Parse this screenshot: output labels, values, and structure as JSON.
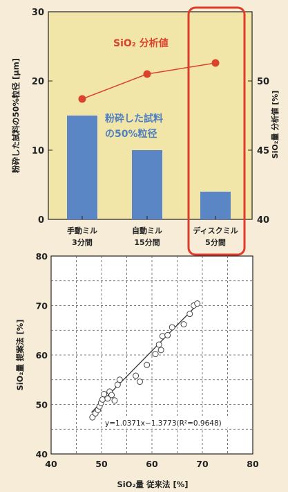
{
  "chart_data": [
    {
      "type": "bar",
      "categories": [
        {
          "line1": "手動ミル",
          "line2": "3分間"
        },
        {
          "line1": "自動ミル",
          "line2": "15分間"
        },
        {
          "line1": "ディスクミル",
          "line2": "5分間"
        }
      ],
      "bar_series": {
        "name_line1": "粉砕した試料",
        "name_line2": "の50%粒径",
        "values": [
          15,
          10,
          4
        ],
        "color": "#5a86c6"
      },
      "line_series": {
        "name": "SiO₂ 分析値",
        "values": [
          48.7,
          50.5,
          51.3
        ],
        "color": "#d9422b"
      },
      "ylabel_left": "粉砕した試料の50%粒径 [μm]",
      "ylabel_right": "SiO₂量 分析値 [%]",
      "ylim_left": [
        0,
        30
      ],
      "yticks_left": [
        0,
        10,
        20,
        30
      ],
      "ylim_right": [
        40,
        55
      ],
      "yticks_right": [
        40,
        45,
        50
      ],
      "highlight_category": "ディスクミル",
      "colors": {
        "plot_bg": "#f1e6a8",
        "highlight": "#e03b2a"
      }
    },
    {
      "type": "scatter",
      "xlabel": "SiO₂量 従来法 [%]",
      "ylabel": "SiO₂量 提案法 [%]",
      "xlim": [
        40,
        80
      ],
      "ylim": [
        40,
        80
      ],
      "xticks": [
        40,
        50,
        60,
        70,
        80
      ],
      "yticks": [
        40,
        50,
        60,
        70,
        80
      ],
      "equation": "y=1.0371x−1.3773(R²=0.9648)",
      "fit": {
        "slope": 1.0371,
        "intercept": -1.3773,
        "x_range": [
          48,
          69.5
        ]
      },
      "points": [
        {
          "x": 48.2,
          "y": 47.4
        },
        {
          "x": 48.8,
          "y": 48.2
        },
        {
          "x": 49.3,
          "y": 48.9
        },
        {
          "x": 49.6,
          "y": 49.6
        },
        {
          "x": 49.9,
          "y": 50.3
        },
        {
          "x": 50.2,
          "y": 51.0
        },
        {
          "x": 50.5,
          "y": 52.1
        },
        {
          "x": 51.2,
          "y": 51.2
        },
        {
          "x": 51.6,
          "y": 52.6
        },
        {
          "x": 52.0,
          "y": 51.9
        },
        {
          "x": 52.6,
          "y": 50.8
        },
        {
          "x": 53.2,
          "y": 54.0
        },
        {
          "x": 53.6,
          "y": 55.0
        },
        {
          "x": 56.8,
          "y": 55.8
        },
        {
          "x": 57.6,
          "y": 54.6
        },
        {
          "x": 59.0,
          "y": 58.0
        },
        {
          "x": 60.7,
          "y": 60.2
        },
        {
          "x": 61.4,
          "y": 62.1
        },
        {
          "x": 61.8,
          "y": 61.0
        },
        {
          "x": 62.1,
          "y": 63.8
        },
        {
          "x": 63.1,
          "y": 64.0
        },
        {
          "x": 64.0,
          "y": 65.6
        },
        {
          "x": 66.3,
          "y": 66.2
        },
        {
          "x": 67.5,
          "y": 68.3
        },
        {
          "x": 68.3,
          "y": 70.0
        },
        {
          "x": 69.0,
          "y": 70.4
        }
      ]
    }
  ]
}
